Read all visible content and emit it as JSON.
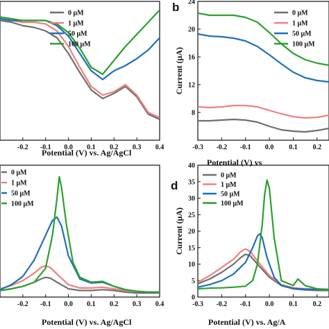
{
  "colors": {
    "0uM": "#6f6f6f",
    "1uM": "#f08080",
    "50uM": "#1f6fba",
    "100uM": "#2ca02c"
  },
  "chart_data": [
    {
      "panel": "",
      "type": "line",
      "xlabel": "Potential (V) vs. Ag/AgCl",
      "ylabel": "",
      "xlim": [
        -0.3,
        0.4
      ],
      "x_ticks": [
        "-0.2",
        "-0.1",
        "0.0",
        "0.1",
        "0.2",
        "0.3",
        "0.4"
      ],
      "y_ticks": [],
      "legend": [
        "0 μM",
        "1 μM",
        "50 μM",
        "100 μM"
      ],
      "legend_position": "top-right",
      "series": [
        {
          "name": "0 μM",
          "color": "#6f6f6f",
          "x": [
            -0.3,
            -0.25,
            -0.2,
            -0.15,
            -0.1,
            -0.05,
            0.0,
            0.05,
            0.1,
            0.15,
            0.2,
            0.25,
            0.3,
            0.35,
            0.4
          ],
          "y": [
            6.9,
            6.8,
            6.6,
            6.5,
            6.3,
            5.9,
            5.0,
            3.9,
            2.9,
            2.4,
            2.7,
            3.1,
            2.5,
            1.5,
            1.2
          ]
        },
        {
          "name": "1 μM",
          "color": "#f08080",
          "x": [
            -0.3,
            -0.25,
            -0.2,
            -0.15,
            -0.1,
            -0.05,
            0.0,
            0.05,
            0.1,
            0.15,
            0.2,
            0.25,
            0.3,
            0.35,
            0.4
          ],
          "y": [
            7.0,
            6.9,
            6.8,
            6.8,
            6.7,
            6.3,
            5.4,
            4.2,
            3.1,
            2.6,
            2.8,
            3.2,
            2.6,
            1.6,
            1.3
          ]
        },
        {
          "name": "50 μM",
          "color": "#1f6fba",
          "x": [
            -0.3,
            -0.25,
            -0.2,
            -0.15,
            -0.1,
            -0.05,
            0.0,
            0.05,
            0.1,
            0.15,
            0.2,
            0.25,
            0.3,
            0.35,
            0.4
          ],
          "y": [
            7.0,
            6.9,
            6.9,
            6.9,
            6.9,
            6.6,
            6.0,
            5.0,
            4.0,
            3.5,
            4.0,
            4.3,
            4.7,
            5.2,
            5.9
          ]
        },
        {
          "name": "100 μM",
          "color": "#2ca02c",
          "x": [
            -0.3,
            -0.25,
            -0.2,
            -0.15,
            -0.1,
            -0.05,
            0.0,
            0.05,
            0.1,
            0.15,
            0.2,
            0.25,
            0.3,
            0.35,
            0.4
          ],
          "y": [
            7.1,
            7.0,
            6.9,
            6.9,
            6.9,
            6.7,
            6.2,
            5.3,
            4.2,
            3.8,
            4.6,
            5.4,
            6.1,
            6.8,
            7.5
          ]
        }
      ]
    },
    {
      "panel": "b",
      "type": "line",
      "xlabel": "Potential (V) vs",
      "ylabel": "Current (μA)",
      "xlim": [
        -0.3,
        0.25
      ],
      "ylim": [
        4,
        24
      ],
      "x_ticks": [
        "-0.3",
        "-0.2",
        "-0.1",
        "0.0",
        "0.1",
        "0.2"
      ],
      "y_ticks": [
        "8",
        "12",
        "16",
        "20",
        "24"
      ],
      "legend": [
        "0 μM",
        "1 μM",
        "50 μM",
        "100 μM"
      ],
      "legend_position": "top-right",
      "series": [
        {
          "name": "0 μM",
          "color": "#6f6f6f",
          "x": [
            -0.3,
            -0.25,
            -0.2,
            -0.15,
            -0.1,
            -0.05,
            0.0,
            0.05,
            0.1,
            0.15,
            0.2,
            0.25
          ],
          "y": [
            6.8,
            6.8,
            6.9,
            7.0,
            6.9,
            6.6,
            6.0,
            5.5,
            5.3,
            5.2,
            5.4,
            5.7
          ]
        },
        {
          "name": "1 μM",
          "color": "#f08080",
          "x": [
            -0.3,
            -0.25,
            -0.2,
            -0.15,
            -0.1,
            -0.05,
            0.0,
            0.05,
            0.1,
            0.15,
            0.2,
            0.25
          ],
          "y": [
            8.8,
            8.7,
            8.8,
            9.0,
            9.0,
            8.8,
            8.3,
            7.8,
            7.4,
            7.2,
            7.3,
            7.6
          ]
        },
        {
          "name": "50 μM",
          "color": "#1f6fba",
          "x": [
            -0.3,
            -0.25,
            -0.2,
            -0.15,
            -0.1,
            -0.05,
            0.0,
            0.05,
            0.1,
            0.15,
            0.2,
            0.25
          ],
          "y": [
            19.3,
            19.0,
            18.9,
            18.7,
            18.3,
            17.5,
            16.3,
            15.0,
            13.8,
            13.0,
            12.6,
            12.4
          ]
        },
        {
          "name": "100 μM",
          "color": "#2ca02c",
          "x": [
            -0.3,
            -0.25,
            -0.2,
            -0.15,
            -0.1,
            -0.05,
            0.0,
            0.05,
            0.1,
            0.15,
            0.2,
            0.25
          ],
          "y": [
            22.3,
            22.0,
            22.0,
            22.0,
            21.7,
            21.0,
            19.5,
            17.9,
            16.5,
            15.6,
            15.1,
            14.8
          ]
        }
      ]
    },
    {
      "panel": "",
      "type": "line",
      "xlabel": "Potential (V) vs. Ag/AgCl",
      "ylabel": "",
      "xlim": [
        -0.3,
        0.4
      ],
      "x_ticks": [
        "-0.2",
        "-0.1",
        "0.0",
        "0.1",
        "0.2",
        "0.3",
        "0.4"
      ],
      "y_ticks": [],
      "legend": [
        "0 μM",
        "1 μM",
        "50 μM",
        "100 μM"
      ],
      "legend_position": "top-left",
      "series": [
        {
          "name": "0 μM",
          "color": "#6f6f6f",
          "x": [
            -0.3,
            -0.25,
            -0.2,
            -0.15,
            -0.12,
            -0.1,
            -0.08,
            -0.05,
            0.0,
            0.05,
            0.1,
            0.15,
            0.2,
            0.25,
            0.3,
            0.35,
            0.4
          ],
          "y": [
            0.8,
            1.0,
            1.3,
            1.8,
            2.2,
            2.4,
            2.3,
            1.8,
            1.0,
            0.8,
            0.8,
            0.9,
            0.8,
            0.6,
            0.5,
            0.5,
            0.5
          ]
        },
        {
          "name": "1 μM",
          "color": "#f08080",
          "x": [
            -0.3,
            -0.25,
            -0.2,
            -0.15,
            -0.12,
            -0.1,
            -0.08,
            -0.05,
            0.0,
            0.05,
            0.1,
            0.15,
            0.2,
            0.25,
            0.3,
            0.35,
            0.4
          ],
          "y": [
            1.0,
            1.4,
            2.0,
            2.9,
            3.6,
            3.8,
            3.6,
            2.8,
            1.5,
            1.1,
            1.1,
            1.2,
            1.0,
            0.8,
            0.7,
            0.6,
            0.6
          ]
        },
        {
          "name": "50 μM",
          "color": "#1f6fba",
          "x": [
            -0.3,
            -0.25,
            -0.2,
            -0.15,
            -0.1,
            -0.07,
            -0.05,
            -0.03,
            0.0,
            0.05,
            0.1,
            0.15,
            0.2,
            0.25,
            0.3,
            0.35,
            0.4
          ],
          "y": [
            0.9,
            1.5,
            2.5,
            4.5,
            7.5,
            9.3,
            9.7,
            8.6,
            5.0,
            2.2,
            1.7,
            1.8,
            1.3,
            0.9,
            0.7,
            0.6,
            0.6
          ]
        },
        {
          "name": "100 μM",
          "color": "#2ca02c",
          "x": [
            -0.3,
            -0.25,
            -0.2,
            -0.15,
            -0.1,
            -0.07,
            -0.05,
            -0.04,
            -0.03,
            -0.01,
            0.02,
            0.05,
            0.1,
            0.15,
            0.2,
            0.25,
            0.3,
            0.35,
            0.4
          ],
          "y": [
            0.8,
            1.0,
            1.3,
            1.8,
            3.5,
            7.5,
            12.0,
            14.6,
            13.3,
            9.0,
            4.2,
            2.4,
            1.8,
            1.9,
            1.3,
            0.9,
            0.7,
            0.6,
            0.6
          ]
        }
      ]
    },
    {
      "panel": "d",
      "type": "line",
      "xlabel": "Potential (V) vs. Ag/A",
      "ylabel": "Current (μA)",
      "xlim": [
        -0.3,
        0.25
      ],
      "ylim": [
        0,
        40
      ],
      "x_ticks": [
        "-0.3",
        "-0.2",
        "-0.1",
        "0.0",
        "0.1",
        "0.2"
      ],
      "y_ticks": [
        "0",
        "5",
        "10",
        "15",
        "20",
        "25",
        "30",
        "35",
        "40"
      ],
      "legend": [
        "0 μM",
        "1 μM",
        "50 μM",
        "100 μM"
      ],
      "legend_position": "top-left",
      "series": [
        {
          "name": "0 μM",
          "color": "#6f6f6f",
          "x": [
            -0.3,
            -0.25,
            -0.2,
            -0.15,
            -0.12,
            -0.1,
            -0.08,
            -0.05,
            0.0,
            0.05,
            0.1,
            0.15,
            0.2,
            0.25
          ],
          "y": [
            4.0,
            5.5,
            7.5,
            10.0,
            12.0,
            13.0,
            12.5,
            10.0,
            6.0,
            3.5,
            2.5,
            2.2,
            2.0,
            2.0
          ]
        },
        {
          "name": "1 μM",
          "color": "#f08080",
          "x": [
            -0.3,
            -0.25,
            -0.2,
            -0.15,
            -0.12,
            -0.1,
            -0.08,
            -0.05,
            0.0,
            0.05,
            0.1,
            0.15,
            0.2,
            0.25
          ],
          "y": [
            4.5,
            6.5,
            9.0,
            11.5,
            13.8,
            14.6,
            13.8,
            11.0,
            6.5,
            3.8,
            2.8,
            2.5,
            2.4,
            2.4
          ]
        },
        {
          "name": "50 μM",
          "color": "#1f6fba",
          "x": [
            -0.3,
            -0.25,
            -0.2,
            -0.15,
            -0.1,
            -0.07,
            -0.05,
            -0.04,
            -0.03,
            -0.01,
            0.02,
            0.05,
            0.1,
            0.15,
            0.2,
            0.25
          ],
          "y": [
            3.0,
            3.8,
            5.0,
            7.0,
            10.5,
            15.0,
            18.5,
            19.2,
            18.0,
            12.0,
            6.0,
            3.5,
            2.6,
            2.4,
            2.3,
            2.3
          ]
        },
        {
          "name": "100 μM",
          "color": "#2ca02c",
          "x": [
            -0.3,
            -0.25,
            -0.2,
            -0.15,
            -0.1,
            -0.07,
            -0.05,
            -0.03,
            -0.02,
            -0.01,
            0.0,
            0.02,
            0.05,
            0.1,
            0.12,
            0.15,
            0.2,
            0.25
          ],
          "y": [
            2.5,
            2.7,
            2.8,
            3.0,
            3.3,
            5.0,
            10.0,
            22.0,
            31.0,
            35.5,
            33.0,
            18.0,
            5.0,
            3.5,
            5.5,
            3.5,
            2.5,
            2.3
          ]
        }
      ]
    }
  ]
}
